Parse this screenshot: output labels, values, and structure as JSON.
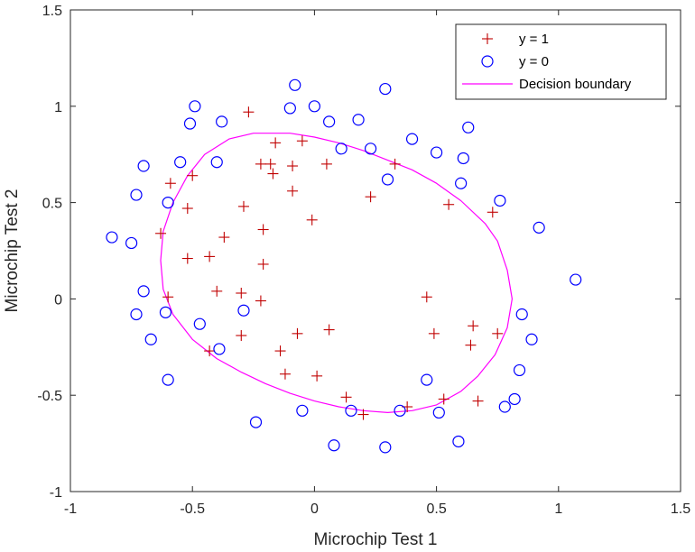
{
  "chart_data": {
    "type": "scatter",
    "xlabel": "Microchip Test 1",
    "ylabel": "Microchip Test 2",
    "xlim": [
      -1,
      1.5
    ],
    "ylim": [
      -1,
      1.5
    ],
    "xticks": [
      -1,
      -0.5,
      0,
      0.5,
      1,
      1.5
    ],
    "yticks": [
      -1,
      -0.5,
      0,
      0.5,
      1,
      1.5
    ],
    "xtick_labels": [
      "-1",
      "-0.5",
      "0",
      "0.5",
      "1",
      "1.5"
    ],
    "ytick_labels": [
      "-1",
      "-0.5",
      "0",
      "0.5",
      "1",
      "1.5"
    ],
    "grid": false,
    "legend_position": "top-right",
    "series": [
      {
        "name": "y = 1",
        "marker": "plus",
        "color": "#c00000",
        "points": [
          [
            -0.27,
            0.97
          ],
          [
            -0.59,
            0.6
          ],
          [
            -0.5,
            0.64
          ],
          [
            -0.63,
            0.34
          ],
          [
            -0.52,
            0.47
          ],
          [
            -0.6,
            0.01
          ],
          [
            -0.52,
            0.21
          ],
          [
            -0.43,
            0.22
          ],
          [
            -0.37,
            0.32
          ],
          [
            -0.4,
            0.04
          ],
          [
            -0.3,
            0.03
          ],
          [
            -0.3,
            -0.19
          ],
          [
            -0.43,
            -0.27
          ],
          [
            -0.29,
            0.48
          ],
          [
            -0.21,
            0.36
          ],
          [
            -0.21,
            0.18
          ],
          [
            -0.22,
            -0.01
          ],
          [
            -0.16,
            0.81
          ],
          [
            -0.22,
            0.7
          ],
          [
            -0.18,
            0.7
          ],
          [
            -0.17,
            0.65
          ],
          [
            -0.09,
            0.69
          ],
          [
            -0.05,
            0.82
          ],
          [
            0.05,
            0.7
          ],
          [
            -0.09,
            0.56
          ],
          [
            -0.01,
            0.41
          ],
          [
            0.23,
            0.53
          ],
          [
            0.33,
            0.7
          ],
          [
            0.55,
            0.49
          ],
          [
            0.73,
            0.45
          ],
          [
            0.46,
            0.01
          ],
          [
            0.49,
            -0.18
          ],
          [
            0.65,
            -0.14
          ],
          [
            0.75,
            -0.18
          ],
          [
            0.64,
            -0.24
          ],
          [
            -0.07,
            -0.18
          ],
          [
            0.06,
            -0.16
          ],
          [
            -0.14,
            -0.27
          ],
          [
            -0.12,
            -0.39
          ],
          [
            0.01,
            -0.4
          ],
          [
            0.13,
            -0.51
          ],
          [
            0.2,
            -0.6
          ],
          [
            0.38,
            -0.56
          ],
          [
            0.53,
            -0.52
          ],
          [
            0.67,
            -0.53
          ]
        ]
      },
      {
        "name": "y = 0",
        "marker": "circle",
        "color": "#0000ff",
        "points": [
          [
            -0.08,
            1.11
          ],
          [
            0.29,
            1.09
          ],
          [
            -0.49,
            1.0
          ],
          [
            -0.51,
            0.91
          ],
          [
            -0.38,
            0.92
          ],
          [
            -0.1,
            0.99
          ],
          [
            0.0,
            1.0
          ],
          [
            0.06,
            0.92
          ],
          [
            0.18,
            0.93
          ],
          [
            0.11,
            0.78
          ],
          [
            0.23,
            0.78
          ],
          [
            0.4,
            0.83
          ],
          [
            0.5,
            0.76
          ],
          [
            0.63,
            0.89
          ],
          [
            0.61,
            0.73
          ],
          [
            0.6,
            0.6
          ],
          [
            0.3,
            0.62
          ],
          [
            0.76,
            0.51
          ],
          [
            0.92,
            0.37
          ],
          [
            1.07,
            0.1
          ],
          [
            -0.55,
            0.71
          ],
          [
            -0.4,
            0.71
          ],
          [
            -0.7,
            0.69
          ],
          [
            -0.73,
            0.54
          ],
          [
            -0.6,
            0.5
          ],
          [
            -0.83,
            0.32
          ],
          [
            -0.75,
            0.29
          ],
          [
            -0.7,
            0.04
          ],
          [
            -0.73,
            -0.08
          ],
          [
            -0.61,
            -0.07
          ],
          [
            -0.67,
            -0.21
          ],
          [
            -0.47,
            -0.13
          ],
          [
            -0.39,
            -0.26
          ],
          [
            -0.29,
            -0.06
          ],
          [
            -0.6,
            -0.42
          ],
          [
            0.85,
            -0.08
          ],
          [
            0.89,
            -0.21
          ],
          [
            0.84,
            -0.37
          ],
          [
            0.82,
            -0.52
          ],
          [
            0.78,
            -0.56
          ],
          [
            0.46,
            -0.42
          ],
          [
            0.51,
            -0.59
          ],
          [
            0.59,
            -0.74
          ],
          [
            0.35,
            -0.58
          ],
          [
            0.15,
            -0.58
          ],
          [
            -0.05,
            -0.58
          ],
          [
            -0.24,
            -0.64
          ],
          [
            0.08,
            -0.76
          ],
          [
            0.29,
            -0.77
          ]
        ]
      },
      {
        "name": "Decision boundary",
        "marker": "line",
        "color": "#ff00ff",
        "points": [
          [
            -0.2,
            0.86
          ],
          [
            -0.1,
            0.86
          ],
          [
            0.0,
            0.84
          ],
          [
            0.1,
            0.81
          ],
          [
            0.2,
            0.77
          ],
          [
            0.3,
            0.72
          ],
          [
            0.4,
            0.67
          ],
          [
            0.5,
            0.6
          ],
          [
            0.6,
            0.51
          ],
          [
            0.7,
            0.39
          ],
          [
            0.75,
            0.3
          ],
          [
            0.79,
            0.15
          ],
          [
            0.81,
            0.0
          ],
          [
            0.79,
            -0.15
          ],
          [
            0.74,
            -0.29
          ],
          [
            0.67,
            -0.4
          ],
          [
            0.6,
            -0.48
          ],
          [
            0.5,
            -0.55
          ],
          [
            0.4,
            -0.58
          ],
          [
            0.3,
            -0.59
          ],
          [
            0.2,
            -0.58
          ],
          [
            0.1,
            -0.56
          ],
          [
            0.0,
            -0.53
          ],
          [
            -0.1,
            -0.49
          ],
          [
            -0.2,
            -0.44
          ],
          [
            -0.3,
            -0.38
          ],
          [
            -0.4,
            -0.31
          ],
          [
            -0.5,
            -0.21
          ],
          [
            -0.58,
            -0.08
          ],
          [
            -0.62,
            0.05
          ],
          [
            -0.63,
            0.2
          ],
          [
            -0.62,
            0.35
          ],
          [
            -0.58,
            0.5
          ],
          [
            -0.52,
            0.64
          ],
          [
            -0.45,
            0.75
          ],
          [
            -0.35,
            0.83
          ],
          [
            -0.25,
            0.86
          ],
          [
            -0.2,
            0.86
          ]
        ]
      }
    ]
  }
}
